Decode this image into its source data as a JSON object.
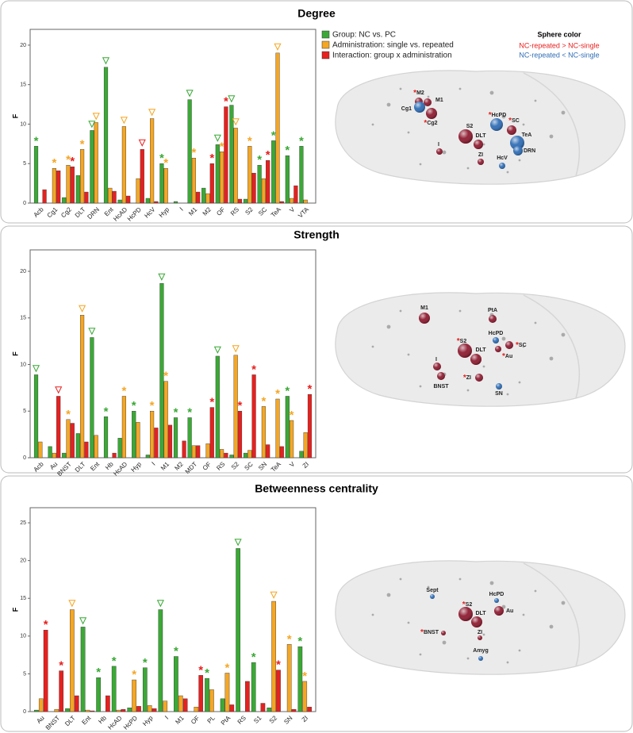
{
  "chart_data": [
    {
      "type": "bar",
      "title": "Degree",
      "ylabel": "F",
      "ylim": [
        0,
        22
      ],
      "yticks": [
        0,
        5,
        10,
        15,
        20
      ],
      "categories": [
        "Acb",
        "Cg1",
        "Cg2",
        "DLT",
        "DRN",
        "Ent",
        "HcAD",
        "HcPD",
        "HcV",
        "Hyp",
        "I",
        "M1",
        "M2",
        "OF",
        "RS",
        "S2",
        "SC",
        "TeA",
        "V",
        "VTA"
      ],
      "series": [
        {
          "name": "Group: NC vs. PC",
          "color": "#3aa935",
          "values": [
            7.2,
            0,
            0.7,
            3.5,
            9.2,
            17.2,
            0.4,
            0,
            0.6,
            5.0,
            0.2,
            13.1,
            1.9,
            7.4,
            12.4,
            0.5,
            4.8,
            7.9,
            6.0,
            7.2
          ],
          "markers": [
            "*",
            null,
            null,
            null,
            "▽",
            "▽",
            null,
            null,
            null,
            "*",
            null,
            "▽",
            null,
            "▽",
            "▽",
            null,
            "*",
            "*",
            "*",
            "*"
          ]
        },
        {
          "name": "Administration: single vs. repeated",
          "color": "#f5a623",
          "values": [
            0,
            4.4,
            4.8,
            6.8,
            10.2,
            1.9,
            9.7,
            3.1,
            10.7,
            4.4,
            0,
            5.7,
            1.2,
            6.5,
            9.5,
            7.2,
            3.1,
            19.0,
            0.6,
            0.4
          ],
          "markers": [
            null,
            "*",
            "*",
            "*",
            "▽",
            null,
            "▽",
            null,
            "▽",
            "*",
            null,
            "*",
            null,
            "*",
            "▽",
            "*",
            null,
            "▽",
            null,
            null
          ]
        },
        {
          "name": "Interaction: group x administration",
          "color": "#e8201e",
          "values": [
            1.7,
            4.1,
            4.6,
            1.4,
            0,
            1.5,
            0.9,
            6.8,
            0.2,
            0,
            0,
            1.4,
            5.0,
            12.2,
            0.5,
            3.8,
            5.4,
            0.2,
            2.2,
            0
          ],
          "markers": [
            null,
            null,
            "*",
            null,
            null,
            null,
            null,
            "▽",
            null,
            null,
            null,
            null,
            "*",
            "*",
            null,
            null,
            "*",
            null,
            null,
            null
          ]
        }
      ]
    },
    {
      "type": "bar",
      "title": "Strength",
      "ylabel": "F",
      "ylim": [
        0,
        22.3
      ],
      "yticks": [
        0,
        5,
        10,
        15,
        20
      ],
      "categories": [
        "Acb",
        "Au",
        "BNST",
        "DLT",
        "Ent",
        "Hb",
        "HcAD",
        "Hyp",
        "I",
        "M1",
        "M2",
        "MDT",
        "OF",
        "RS",
        "S2",
        "SC",
        "SN",
        "TeA",
        "V",
        "ZI"
      ],
      "series": [
        {
          "color": "#3aa935",
          "values": [
            8.9,
            1.2,
            0.5,
            2.6,
            12.9,
            4.4,
            2.1,
            5.0,
            0.3,
            18.7,
            4.3,
            4.3,
            0,
            10.9,
            0.3,
            0.5,
            0,
            0,
            6.6,
            0.7
          ],
          "markers": [
            "▽",
            null,
            null,
            null,
            "▽",
            "*",
            null,
            "*",
            null,
            "▽",
            "*",
            "*",
            null,
            "▽",
            null,
            null,
            null,
            null,
            "*",
            null
          ]
        },
        {
          "color": "#f5a623",
          "values": [
            1.7,
            0.5,
            4.1,
            15.3,
            2.4,
            0,
            6.6,
            3.8,
            5.0,
            8.2,
            0,
            1.3,
            1.5,
            0.9,
            11.0,
            0.8,
            5.5,
            6.3,
            4.0,
            2.7
          ],
          "markers": [
            null,
            null,
            "*",
            "▽",
            null,
            null,
            "*",
            null,
            "*",
            "*",
            null,
            null,
            null,
            null,
            "▽",
            null,
            "*",
            "*",
            "*",
            null
          ]
        },
        {
          "color": "#e8201e",
          "values": [
            0,
            6.6,
            3.7,
            1.7,
            0,
            0.5,
            0,
            0,
            3.2,
            3.5,
            1.8,
            1.3,
            5.4,
            0.5,
            5.0,
            8.9,
            1.4,
            1.2,
            0,
            6.8
          ],
          "markers": [
            null,
            "▽",
            null,
            null,
            null,
            null,
            null,
            null,
            null,
            null,
            null,
            null,
            "*",
            null,
            "*",
            "*",
            null,
            null,
            null,
            "*"
          ]
        }
      ]
    },
    {
      "type": "bar",
      "title": "Betweenness centrality",
      "ylabel": "F",
      "ylim": [
        0,
        27
      ],
      "yticks": [
        0,
        5,
        10,
        15,
        20,
        25
      ],
      "categories": [
        "Au",
        "BNST",
        "DLT",
        "Ent",
        "Hb",
        "HcAD",
        "HcPD",
        "Hyp",
        "I",
        "M1",
        "OF",
        "PL",
        "PtA",
        "RS",
        "S1",
        "S2",
        "SN",
        "ZI"
      ],
      "series": [
        {
          "color": "#3aa935",
          "values": [
            0.2,
            0,
            0.4,
            11.2,
            4.5,
            6.0,
            0.5,
            5.8,
            13.5,
            7.3,
            0,
            4.4,
            1.7,
            21.6,
            6.5,
            0.5,
            0,
            8.6
          ],
          "markers": [
            null,
            null,
            null,
            "▽",
            "*",
            "*",
            null,
            "*",
            "▽",
            "*",
            null,
            "*",
            null,
            "▽",
            "*",
            null,
            null,
            "*"
          ]
        },
        {
          "color": "#f5a623",
          "values": [
            1.7,
            0.3,
            13.5,
            0.2,
            0,
            0.2,
            4.2,
            0.8,
            1.4,
            2.1,
            0.6,
            2.9,
            5.1,
            0,
            0,
            14.6,
            8.9,
            4.0
          ],
          "markers": [
            null,
            null,
            "▽",
            null,
            null,
            null,
            "*",
            null,
            null,
            null,
            null,
            null,
            "*",
            null,
            null,
            "▽",
            "*",
            "*"
          ]
        },
        {
          "color": "#e8201e",
          "values": [
            10.8,
            5.4,
            2.1,
            0.1,
            2.1,
            0.3,
            0.7,
            0.4,
            0,
            1.7,
            4.8,
            0,
            0.9,
            4.0,
            1.1,
            5.5,
            0.3,
            0.6
          ],
          "markers": [
            "*",
            "*",
            null,
            null,
            null,
            null,
            null,
            null,
            null,
            null,
            "*",
            null,
            null,
            null,
            null,
            "*",
            null,
            null
          ]
        }
      ]
    }
  ],
  "sphere_legend": {
    "title": "Sphere color",
    "items": [
      {
        "label": "NC-repeated > NC-single",
        "color": "#e8201e"
      },
      {
        "label": "NC-repeated  < NC-single",
        "color": "#2f6db5"
      }
    ]
  },
  "brains": [
    {
      "nodes": [
        {
          "label": "M2",
          "star": "*",
          "color": "#8e1b30"
        },
        {
          "label": "M1",
          "color": "#8e1b30"
        },
        {
          "label": "Cg1",
          "color": "#2f6db5"
        },
        {
          "label": "Cg2",
          "star": "*",
          "color": "#8e1b30"
        },
        {
          "label": "HcPD",
          "star": "*",
          "color": "#2f6db5"
        },
        {
          "label": "SC",
          "star": "*",
          "color": "#8e1b30"
        },
        {
          "label": "S2",
          "color": "#8e1b30"
        },
        {
          "label": "DLT",
          "color": "#8e1b30"
        },
        {
          "label": "I",
          "color": "#8e1b30"
        },
        {
          "label": "ZI",
          "color": "#8e1b30"
        },
        {
          "label": "TeA",
          "color": "#2f6db5"
        },
        {
          "label": "DRN",
          "color": "#2f6db5"
        },
        {
          "label": "HcV",
          "color": "#2f6db5"
        }
      ]
    },
    {
      "nodes": [
        {
          "label": "M1",
          "color": "#8e1b30"
        },
        {
          "label": "PtA",
          "color": "#8e1b30"
        },
        {
          "label": "HcPD",
          "color": "#2f6db5"
        },
        {
          "label": "S2",
          "star": "*",
          "color": "#8e1b30"
        },
        {
          "label": "DLT",
          "color": "#8e1b30"
        },
        {
          "label": "Au",
          "star": "*",
          "color": "#8e1b30"
        },
        {
          "label": "SC",
          "star": "*",
          "color": "#8e1b30"
        },
        {
          "label": "I",
          "color": "#8e1b30"
        },
        {
          "label": "BNST",
          "color": "#8e1b30"
        },
        {
          "label": "ZI",
          "star": "*",
          "color": "#8e1b30"
        },
        {
          "label": "SN",
          "color": "#2f6db5"
        }
      ]
    },
    {
      "nodes": [
        {
          "label": "S2",
          "star": "*",
          "color": "#8e1b30"
        },
        {
          "label": "HcPD",
          "color": "#2f6db5"
        },
        {
          "label": "Sept",
          "color": "#2f6db5"
        },
        {
          "label": "DLT",
          "color": "#8e1b30"
        },
        {
          "label": "Au",
          "color": "#8e1b30"
        },
        {
          "label": "BNST",
          "star": "*",
          "color": "#8e1b30"
        },
        {
          "label": "ZI",
          "color": "#8e1b30"
        },
        {
          "label": "Amyg",
          "color": "#2f6db5"
        }
      ]
    }
  ]
}
